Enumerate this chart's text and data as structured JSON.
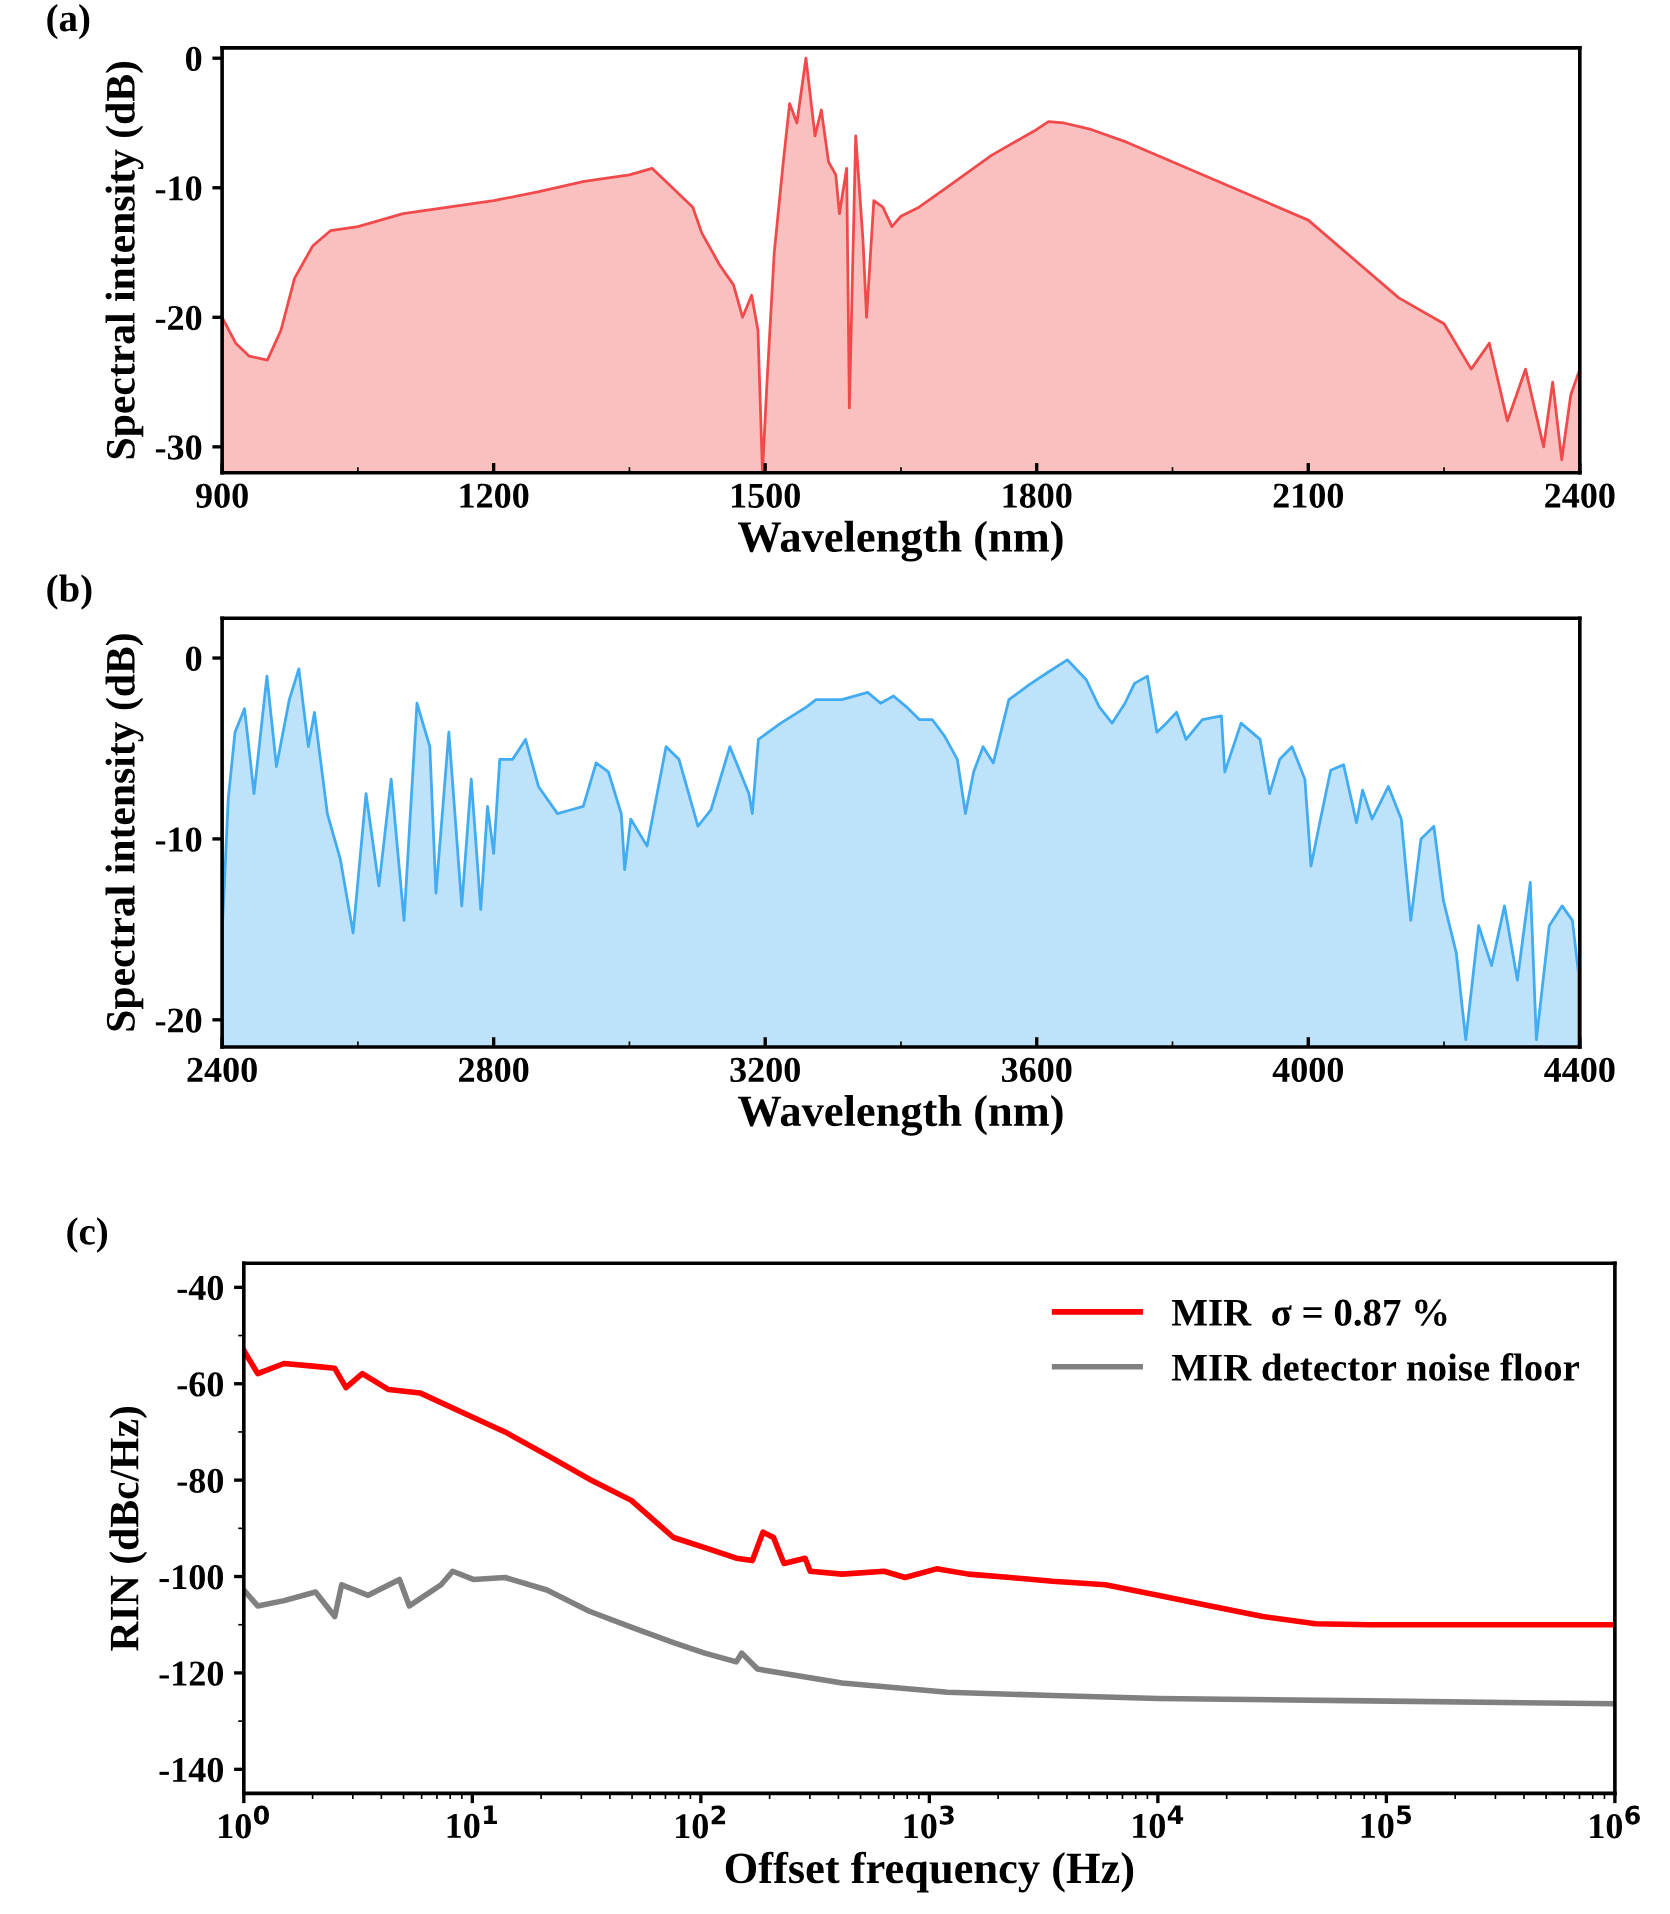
{
  "chart_data": [
    {
      "type": "area",
      "title": "(a)",
      "xlabel": "Wavelength (nm)",
      "ylabel": "Spectral intensity (dB)",
      "xlim": [
        900,
        2400
      ],
      "ylim": [
        -32,
        0.8
      ],
      "xticks": [
        900,
        1200,
        1500,
        1800,
        2100,
        2400
      ],
      "yticks": [
        0,
        -10,
        -20,
        -30
      ],
      "grid": false,
      "legend": false,
      "series": [
        {
          "color": "#f24a4a",
          "x": [
            900,
            915,
            930,
            950,
            965,
            980,
            1000,
            1020,
            1050,
            1100,
            1150,
            1200,
            1250,
            1300,
            1350,
            1375,
            1390,
            1420,
            1430,
            1450,
            1465,
            1475,
            1485,
            1492,
            1497,
            1502,
            1510,
            1520,
            1527,
            1535,
            1545,
            1555,
            1562,
            1570,
            1578,
            1582,
            1590,
            1593,
            1600,
            1608,
            1612,
            1620,
            1630,
            1640,
            1650,
            1670,
            1700,
            1750,
            1800,
            1813,
            1830,
            1860,
            1900,
            2000,
            2100,
            2150,
            2200,
            2250,
            2280,
            2300,
            2320,
            2340,
            2360,
            2370,
            2380,
            2390,
            2400
          ],
          "values": [
            -20,
            -22,
            -23,
            -23.3,
            -21,
            -17,
            -14.5,
            -13.3,
            -13,
            -12,
            -11.5,
            -11,
            -10.3,
            -9.5,
            -9,
            -8.5,
            -9.5,
            -11.5,
            -13.5,
            -16,
            -17.5,
            -20,
            -18.3,
            -21,
            -32,
            -25,
            -15,
            -8,
            -3.5,
            -5,
            0,
            -6,
            -4,
            -8,
            -9,
            -12,
            -8.5,
            -27,
            -6,
            -14,
            -20,
            -11,
            -11.5,
            -13,
            -12.2,
            -11.5,
            -10,
            -7.5,
            -5.5,
            -4.9,
            -5,
            -5.5,
            -6.5,
            -9.5,
            -12.5,
            -15.5,
            -18.5,
            -20.5,
            -24,
            -22,
            -28,
            -24,
            -30,
            -25,
            -31,
            -26,
            -24
          ]
        }
      ]
    },
    {
      "type": "area",
      "title": "(b)",
      "xlabel": "Wavelength (nm)",
      "ylabel": "Spectral intensity (dB)",
      "xlim": [
        2400,
        4400
      ],
      "ylim": [
        -21.5,
        2.2
      ],
      "xticks": [
        2400,
        2800,
        3200,
        3600,
        4000,
        4400
      ],
      "yticks": [
        0,
        -10,
        -20
      ],
      "grid": false,
      "legend": false,
      "series": [
        {
          "color": "#42acf2",
          "x": [
            2400,
            2409,
            2419,
            2433,
            2447,
            2466,
            2480,
            2499,
            2513,
            2527,
            2536,
            2555,
            2574,
            2593,
            2612,
            2631,
            2649,
            2668,
            2687,
            2706,
            2715,
            2734,
            2753,
            2767,
            2781,
            2791,
            2800,
            2809,
            2828,
            2847,
            2866,
            2894,
            2913,
            2932,
            2951,
            2969,
            2988,
            2993,
            3002,
            3026,
            3054,
            3073,
            3101,
            3120,
            3148,
            3176,
            3181,
            3190,
            3223,
            3261,
            3275,
            3313,
            3351,
            3370,
            3389,
            3408,
            3427,
            3446,
            3464,
            3483,
            3495,
            3507,
            3521,
            3536,
            3559,
            3588,
            3616,
            3645,
            3673,
            3692,
            3711,
            3730,
            3744,
            3763,
            3777,
            3791,
            3806,
            3820,
            3844,
            3872,
            3877,
            3901,
            3929,
            3943,
            3958,
            3976,
            3995,
            4004,
            4018,
            4033,
            4052,
            4071,
            4080,
            4094,
            4118,
            4137,
            4151,
            4166,
            4185,
            4199,
            4218,
            4232,
            4251,
            4270,
            4289,
            4308,
            4327,
            4336,
            4355,
            4374,
            4389,
            4398
          ],
          "values": [
            -15.2,
            -7.8,
            -4.1,
            -2.8,
            -7.5,
            -1,
            -6,
            -2.3,
            -0.6,
            -4.9,
            -3,
            -8.6,
            -11.1,
            -15.2,
            -7.5,
            -12.6,
            -6.7,
            -14.5,
            -2.5,
            -4.9,
            -13,
            -4.1,
            -13.7,
            -6.7,
            -13.9,
            -8.2,
            -10.8,
            -5.6,
            -5.6,
            -4.5,
            -7.1,
            -8.6,
            -8.4,
            -8.2,
            -5.8,
            -6.3,
            -8.6,
            -11.7,
            -8.9,
            -10.4,
            -4.9,
            -5.6,
            -9.3,
            -8.4,
            -4.9,
            -7.5,
            -8.6,
            -4.5,
            -3.6,
            -2.7,
            -2.3,
            -2.3,
            -1.9,
            -2.5,
            -2.1,
            -2.7,
            -3.4,
            -3.4,
            -4.3,
            -5.6,
            -8.6,
            -6.3,
            -4.9,
            -5.8,
            -2.3,
            -1.5,
            -0.8,
            -0.1,
            -1.2,
            -2.7,
            -3.6,
            -2.5,
            -1.4,
            -1,
            -4.1,
            -3.6,
            -3,
            -4.5,
            -3.4,
            -3.2,
            -6.3,
            -3.6,
            -4.5,
            -7.5,
            -5.6,
            -4.9,
            -6.7,
            -11.5,
            -8.9,
            -6.2,
            -5.9,
            -9.1,
            -7.3,
            -8.9,
            -7.1,
            -8.9,
            -14.5,
            -10,
            -9.3,
            -13.4,
            -16.3,
            -21.1,
            -14.8,
            -17,
            -13.7,
            -17.8,
            -12.4,
            -21.1,
            -14.8,
            -13.7,
            -14.5,
            -17.4
          ]
        }
      ]
    },
    {
      "type": "line",
      "title": "(c)",
      "xlabel": "Offset frequency (Hz)",
      "ylabel": "RIN (dBc/Hz)",
      "log": "x",
      "xlim": [
        1,
        1000000
      ],
      "ylim": [
        -145,
        -35
      ],
      "xticks": [
        {
          "value": 1,
          "label": "10$^{0}$"
        },
        {
          "value": 10,
          "label": "10$^{1}$"
        },
        {
          "value": 100,
          "label": "10$^{2}$"
        },
        {
          "value": 1000,
          "label": "10$^{3}$"
        },
        {
          "value": 10000,
          "label": "10$^{4}$"
        },
        {
          "value": 100000,
          "label": "10$^{5}$"
        },
        {
          "value": 1000000,
          "label": "10$^{6}$"
        }
      ],
      "yticks": [
        -40,
        -60,
        -80,
        -100,
        -120,
        -140
      ],
      "grid": false,
      "legend": "top right",
      "marker": "none",
      "line_style": "solid",
      "series": [
        {
          "name": "MIR  σ = 0.87 %",
          "color": "#ff0000",
          "x": [
            1,
            1.15,
            1.5,
            2.06,
            2.5,
            2.8,
            3.3,
            4.3,
            5.9,
            9.1,
            13.9,
            21.2,
            32.5,
            49.6,
            75.9,
            104,
            143,
            168,
            187,
            208,
            231,
            286,
            301,
            415,
            634,
            783,
            1076,
            1482,
            2265,
            3460,
            5890,
            10000,
            17000,
            28800,
            49000,
            83700,
            240000,
            1000000
          ],
          "values": [
            -53.1,
            -57.9,
            -55.8,
            -56.4,
            -56.8,
            -60.8,
            -57.9,
            -61.2,
            -61.9,
            -66,
            -70,
            -74.8,
            -79.8,
            -84.2,
            -91.9,
            -94,
            -96.2,
            -96.7,
            -90.8,
            -91.9,
            -97.3,
            -96.2,
            -98.9,
            -99.5,
            -98.9,
            -100.2,
            -98.4,
            -99.5,
            -100.2,
            -101,
            -101.7,
            -103.9,
            -106.1,
            -108.3,
            -109.8,
            -110,
            -110,
            -110
          ]
        },
        {
          "name": "MIR detector noise floor",
          "color": "#808080",
          "x": [
            1,
            1.15,
            1.5,
            2.06,
            2.5,
            2.68,
            3.5,
            4.8,
            5.3,
            7.3,
            8.2,
            10.1,
            13.9,
            21.2,
            32.5,
            49.6,
            75.9,
            104,
            143,
            151,
            177,
            415,
            1200,
            3460,
            10000,
            83700,
            1000000
          ],
          "values": [
            -102.8,
            -106.1,
            -105,
            -103.2,
            -108.3,
            -101.7,
            -103.9,
            -100.6,
            -106.1,
            -101.7,
            -98.9,
            -100.6,
            -100.2,
            -102.8,
            -107.2,
            -110.5,
            -113.7,
            -115.9,
            -117.7,
            -115.9,
            -119.2,
            -122.1,
            -124,
            -124.7,
            -125.3,
            -125.8,
            -126.4
          ]
        }
      ]
    }
  ]
}
